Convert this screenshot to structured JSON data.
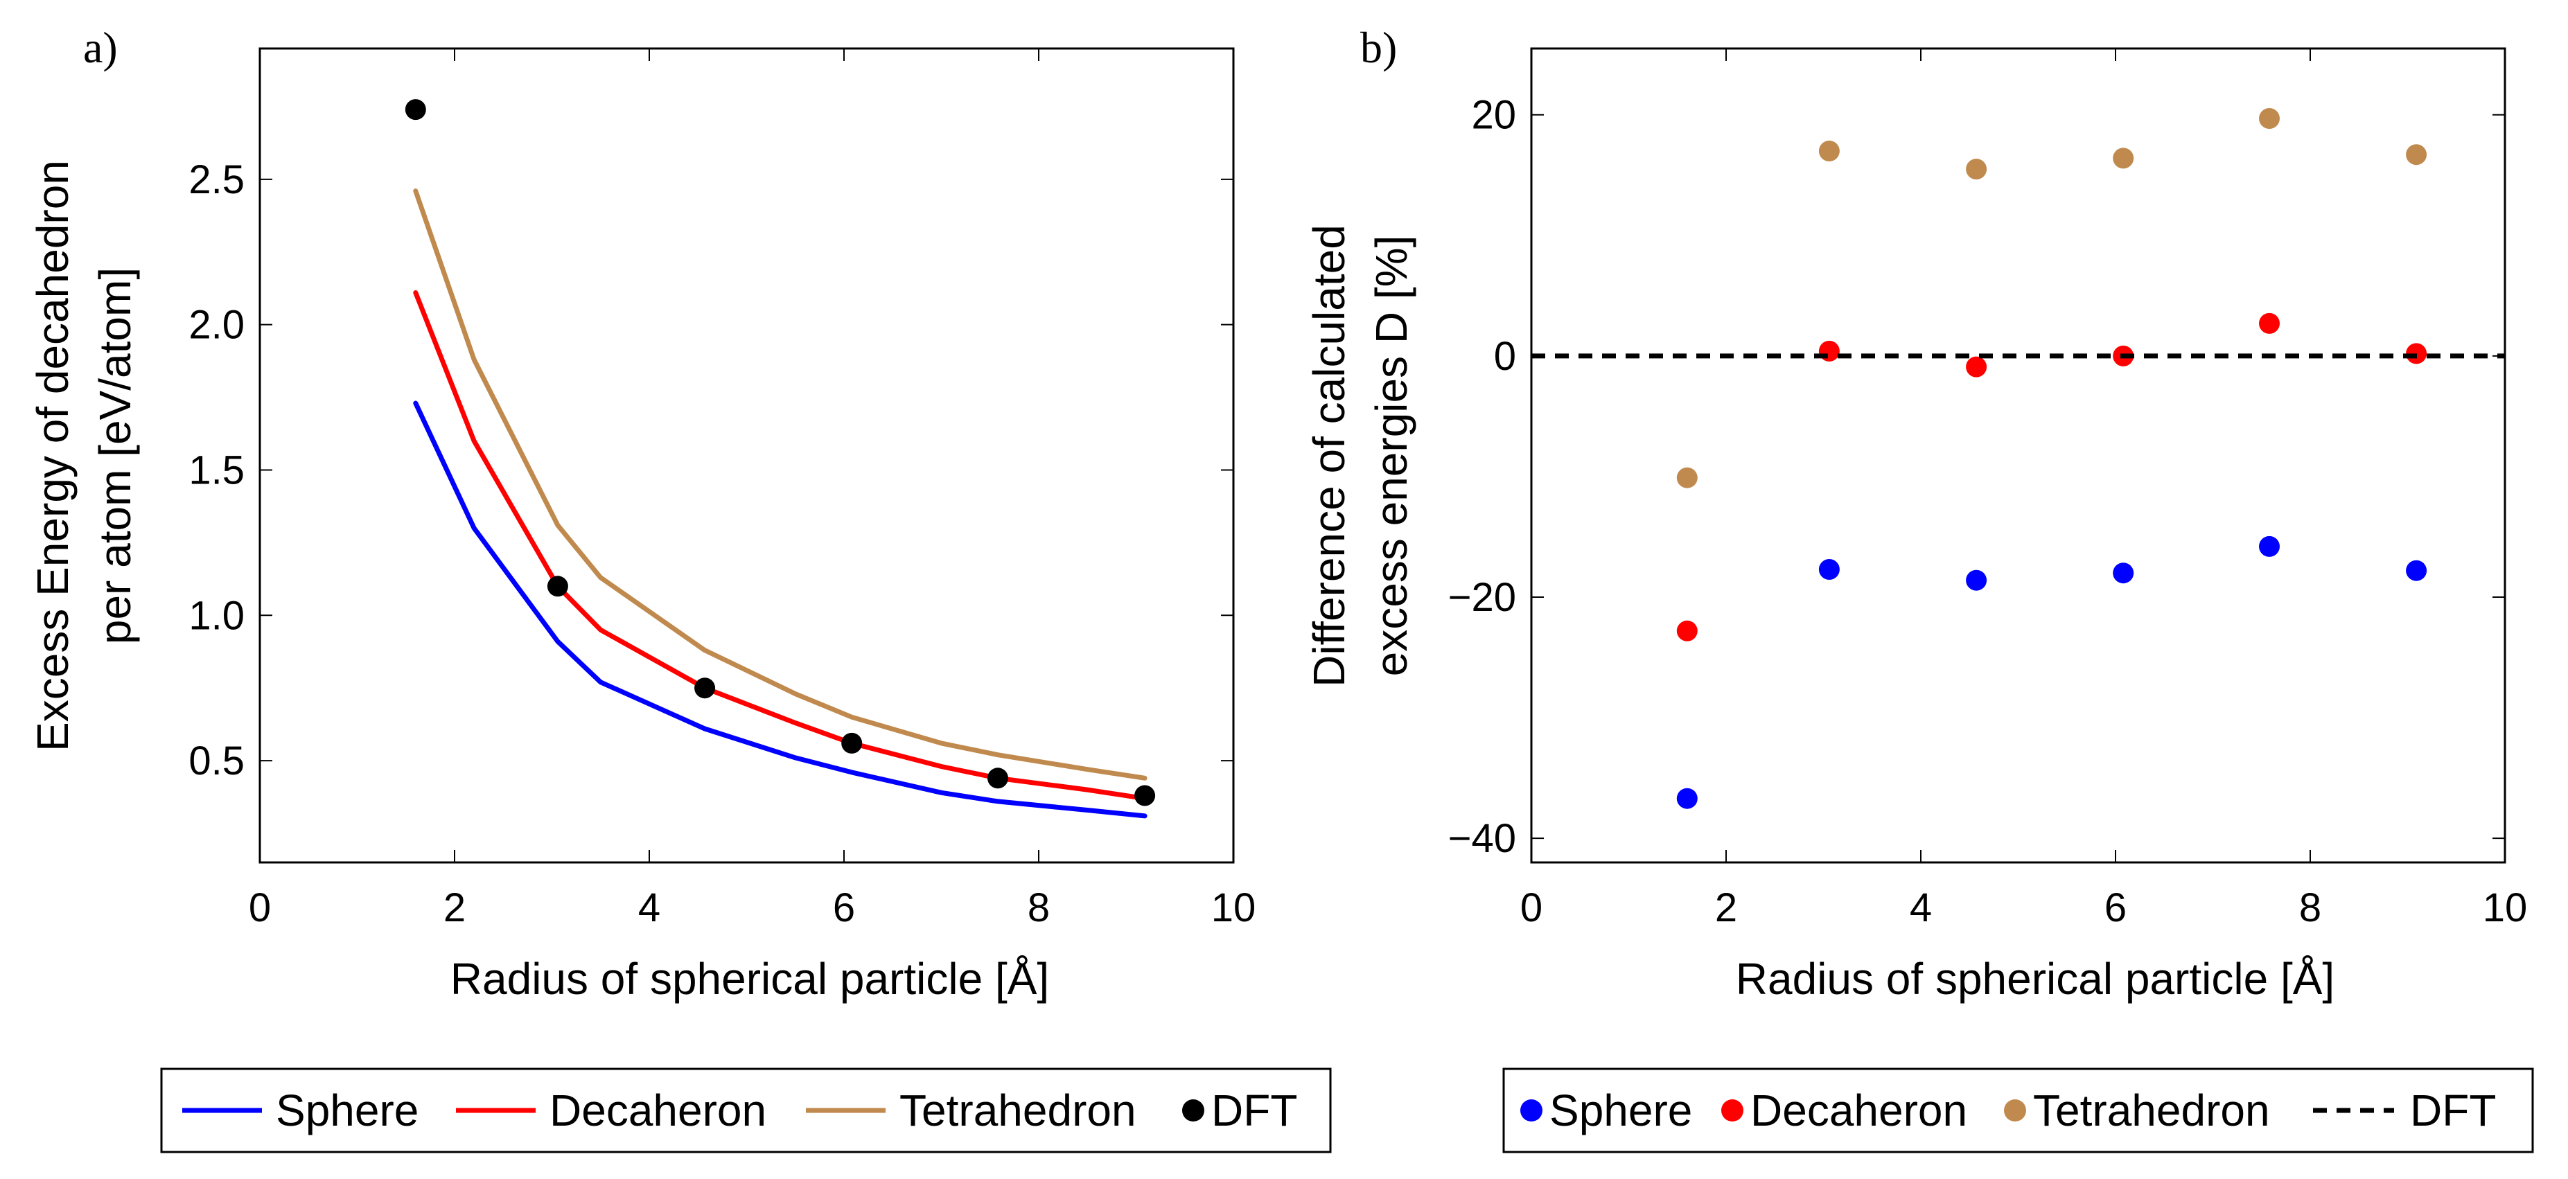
{
  "chart_data": [
    {
      "panel_label": "a)",
      "type": "line",
      "title": "",
      "xlabel": "Radius of spherical particle [Å]",
      "ylabel_lines": [
        "Excess Energy of decahedron",
        "per atom [eV/atom]"
      ],
      "xlim": [
        0,
        10
      ],
      "ylim": [
        0.15,
        2.95
      ],
      "xticks": [
        0,
        2,
        4,
        6,
        8,
        10
      ],
      "xtick_labels": [
        "0",
        "2",
        "4",
        "6",
        "8",
        "10"
      ],
      "yticks": [
        0.5,
        1.0,
        1.5,
        2.0,
        2.5
      ],
      "ytick_labels": [
        "0.5",
        "1.0",
        "1.5",
        "2.0",
        "2.5"
      ],
      "series": [
        {
          "name": "Sphere",
          "kind": "line",
          "color": "#0000ff",
          "x": [
            1.6,
            2.2,
            3.06,
            3.5,
            4.57,
            5.5,
            6.08,
            7.0,
            7.58,
            8.5,
            9.09
          ],
          "values": [
            1.73,
            1.3,
            0.91,
            0.77,
            0.61,
            0.51,
            0.46,
            0.39,
            0.36,
            0.33,
            0.31
          ]
        },
        {
          "name": "Decaheron",
          "kind": "line",
          "color": "#ff0000",
          "x": [
            1.6,
            2.2,
            3.06,
            3.5,
            4.57,
            5.5,
            6.08,
            7.0,
            7.58,
            8.5,
            9.09
          ],
          "values": [
            2.11,
            1.6,
            1.1,
            0.95,
            0.75,
            0.63,
            0.56,
            0.48,
            0.44,
            0.4,
            0.37
          ]
        },
        {
          "name": "Tetrahedron",
          "kind": "line",
          "color": "#c08a4e",
          "x": [
            1.6,
            2.2,
            3.06,
            3.5,
            4.57,
            5.5,
            6.08,
            7.0,
            7.58,
            8.5,
            9.09
          ],
          "values": [
            2.46,
            1.88,
            1.31,
            1.13,
            0.88,
            0.73,
            0.65,
            0.56,
            0.52,
            0.47,
            0.44
          ]
        },
        {
          "name": "DFT",
          "kind": "scatter",
          "color": "#000000",
          "x": [
            1.6,
            3.06,
            4.57,
            6.08,
            7.58,
            9.09
          ],
          "values": [
            2.74,
            1.1,
            0.75,
            0.56,
            0.44,
            0.38
          ]
        }
      ],
      "legend": [
        "Sphere",
        "Decaheron",
        "Tetrahedron",
        "DFT"
      ]
    },
    {
      "panel_label": "b)",
      "type": "scatter",
      "title": "",
      "xlabel": "Radius of spherical particle [Å]",
      "ylabel_lines": [
        "Difference of calculated",
        "excess energies D [%]"
      ],
      "xlim": [
        0,
        10
      ],
      "ylim": [
        -42,
        25.5
      ],
      "xticks": [
        0,
        2,
        4,
        6,
        8,
        10
      ],
      "xtick_labels": [
        "0",
        "2",
        "4",
        "6",
        "8",
        "10"
      ],
      "yticks": [
        -40,
        -20,
        0,
        20
      ],
      "ytick_labels": [
        "−40",
        "−20",
        "0",
        "20"
      ],
      "series": [
        {
          "name": "Sphere",
          "kind": "scatter",
          "color": "#0000ff",
          "x": [
            1.6,
            3.06,
            4.57,
            6.08,
            7.58,
            9.09
          ],
          "values": [
            -36.7,
            -17.7,
            -18.6,
            -18.0,
            -15.8,
            -17.8
          ]
        },
        {
          "name": "Decaheron",
          "kind": "scatter",
          "color": "#ff0000",
          "x": [
            1.6,
            3.06,
            4.57,
            6.08,
            7.58,
            9.09
          ],
          "values": [
            -22.8,
            0.4,
            -0.9,
            0.0,
            2.7,
            0.2
          ]
        },
        {
          "name": "Tetrahedron",
          "kind": "scatter",
          "color": "#c08a4e",
          "x": [
            1.6,
            3.06,
            4.57,
            6.08,
            7.58,
            9.09
          ],
          "values": [
            -10.1,
            17.0,
            15.5,
            16.4,
            19.7,
            16.7
          ]
        },
        {
          "name": "DFT",
          "kind": "dashed-line",
          "color": "#000000",
          "x": [
            0,
            10
          ],
          "values": [
            0,
            0
          ]
        }
      ],
      "legend": [
        "Sphere",
        "Decaheron",
        "Tetrahedron",
        "DFT"
      ]
    }
  ]
}
